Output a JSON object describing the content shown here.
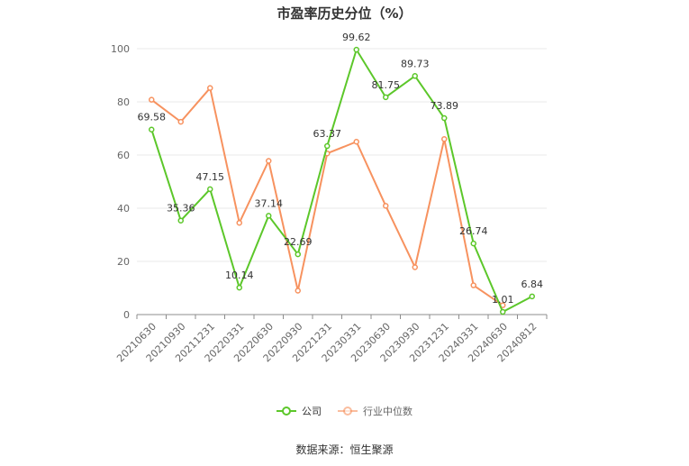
{
  "title": "市盈率历史分位（%）",
  "source": "数据来源：恒生聚源",
  "colors": {
    "company": "#5cc72a",
    "industry": "#f7925f",
    "grid": "#e8e8e8",
    "axis": "#8c8c8c"
  },
  "chart_data": {
    "type": "line",
    "title": "市盈率历史分位（%）",
    "xlabel": "",
    "ylabel": "",
    "ylim": [
      0,
      100
    ],
    "yticks": [
      0,
      20,
      40,
      60,
      80,
      100
    ],
    "grid": true,
    "legend_position": "bottom",
    "categories": [
      "20210630",
      "20210930",
      "20211231",
      "20220331",
      "20220630",
      "20220930",
      "20221231",
      "20230331",
      "20230630",
      "20230930",
      "20231231",
      "20240331",
      "20240630",
      "20240812"
    ],
    "series": [
      {
        "name": "公司",
        "color": "#5cc72a",
        "values": [
          69.58,
          35.36,
          47.15,
          10.14,
          37.14,
          22.69,
          63.37,
          99.62,
          81.75,
          89.73,
          73.89,
          26.74,
          1.01,
          6.84
        ],
        "labels": [
          "69.58",
          "35.36",
          "47.15",
          "10.14",
          "37.14",
          "22.69",
          "63.37",
          "99.62",
          "81.75",
          "89.73",
          "73.89",
          "26.74",
          "1.01",
          "6.84"
        ]
      },
      {
        "name": "行业中位数",
        "color": "#f7925f",
        "values": [
          80.8,
          72.5,
          85.2,
          34.5,
          57.8,
          9.0,
          60.6,
          65.0,
          40.9,
          17.8,
          66.0,
          11.0,
          3.5,
          null
        ]
      }
    ]
  }
}
